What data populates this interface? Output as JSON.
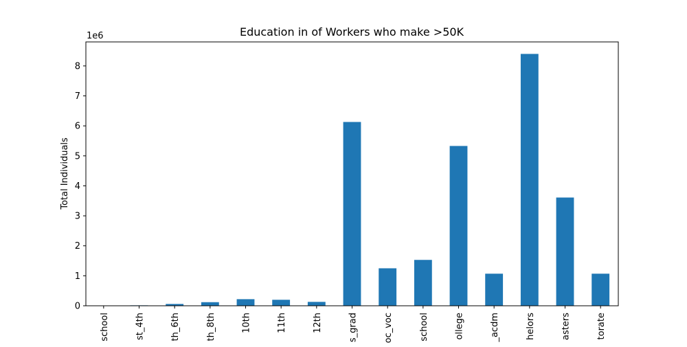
{
  "chart_data": {
    "type": "bar",
    "title": "Education in of Workers who make >50K",
    "xlabel": "",
    "ylabel": "Total Individuals",
    "scale_label": "1e6",
    "categories": [
      "school",
      "st_4th",
      "th_6th",
      "th_8th",
      "10th",
      "11th",
      "12th",
      "s_grad",
      "oc_voc",
      "school",
      "ollege",
      "_acdm",
      "helors",
      "asters",
      "torate"
    ],
    "values": [
      0,
      15000,
      60000,
      120000,
      220000,
      200000,
      130000,
      6130000,
      1250000,
      1530000,
      5330000,
      1070000,
      8400000,
      3610000,
      1070000
    ],
    "ylim": [
      0,
      8800000
    ],
    "yticks": [
      0,
      1,
      2,
      3,
      4,
      5,
      6,
      7,
      8
    ],
    "bar_color": "#1f77b4",
    "grid": false,
    "legend": "none"
  }
}
